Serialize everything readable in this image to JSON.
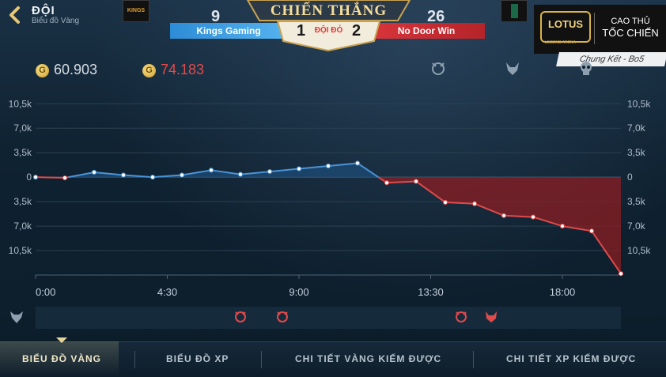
{
  "header": {
    "title": "ĐỘI",
    "subtitle": "Biểu đồ Vàng"
  },
  "scoreboard": {
    "left_kills": "9",
    "right_kills": "26",
    "result": "CHIẾN THẮNG",
    "left_team": "Kings Gaming",
    "right_team": "No Door Win",
    "left_score": "1",
    "right_score": "2",
    "score_label": "ĐỘI ĐỎ",
    "left_logo_text": "KINGS"
  },
  "brand": {
    "logo": "LOTUS",
    "logo_sub": "LEGEND ARENA",
    "line1": "CAO THỦ",
    "line2": "TỐC CHIẾN",
    "event": "Chung Kết - Bo5"
  },
  "gold": {
    "blue_total": "60.903",
    "red_total": "74.183",
    "coin_symbol": "G"
  },
  "colors": {
    "blue_line": "#4a93d6",
    "red_line": "#e04a4a",
    "red_fill": "#8b1e22",
    "blue_fill": "#1d4a73",
    "tab_active": "#f0e7c8"
  },
  "chart_data": {
    "type": "area",
    "title": "",
    "xlabel": "",
    "ylabel": "",
    "x_tick_labels": [
      "0:00",
      "4:30",
      "9:00",
      "13:30",
      "18:00"
    ],
    "x_ticks": [
      0,
      270,
      540,
      810,
      1080
    ],
    "y_tick_labels": [
      "10,5k",
      "7,0k",
      "3,5k",
      "0",
      "3,5k",
      "7,0k",
      "10,5k"
    ],
    "y_ticks": [
      10500,
      7000,
      3500,
      0,
      -3500,
      -7000,
      -10500
    ],
    "xlim": [
      0,
      1200
    ],
    "ylim": [
      -14000,
      12000
    ],
    "series": [
      {
        "x": [
          0,
          60,
          120,
          180,
          240,
          300,
          360,
          420,
          480,
          540,
          600,
          660,
          720,
          780,
          840,
          900,
          960,
          1020,
          1080,
          1140,
          1200
        ],
        "values": [
          0,
          -100,
          700,
          300,
          0,
          300,
          1000,
          400,
          800,
          1200,
          1600,
          2000,
          -800,
          -600,
          -3600,
          -3800,
          -5500,
          -5700,
          -7000,
          -7700,
          -13800
        ]
      }
    ]
  },
  "objectives": {
    "top_icons": [
      "dragon-icon",
      "horned-skull-icon",
      "skull-icon"
    ],
    "bottom_icons": [
      "wolf-icon",
      "dragon-icon",
      "dragon-icon",
      "dragon-icon",
      "horned-skull-icon"
    ]
  },
  "tabs": [
    {
      "label": "BIỂU ĐỒ VÀNG",
      "active": true
    },
    {
      "label": "BIỂU ĐỒ XP",
      "active": false
    },
    {
      "label": "CHI TIẾT VÀNG KIẾM ĐƯỢC",
      "active": false
    },
    {
      "label": "CHI TIẾT XP KIẾM ĐƯỢC",
      "active": false
    }
  ]
}
